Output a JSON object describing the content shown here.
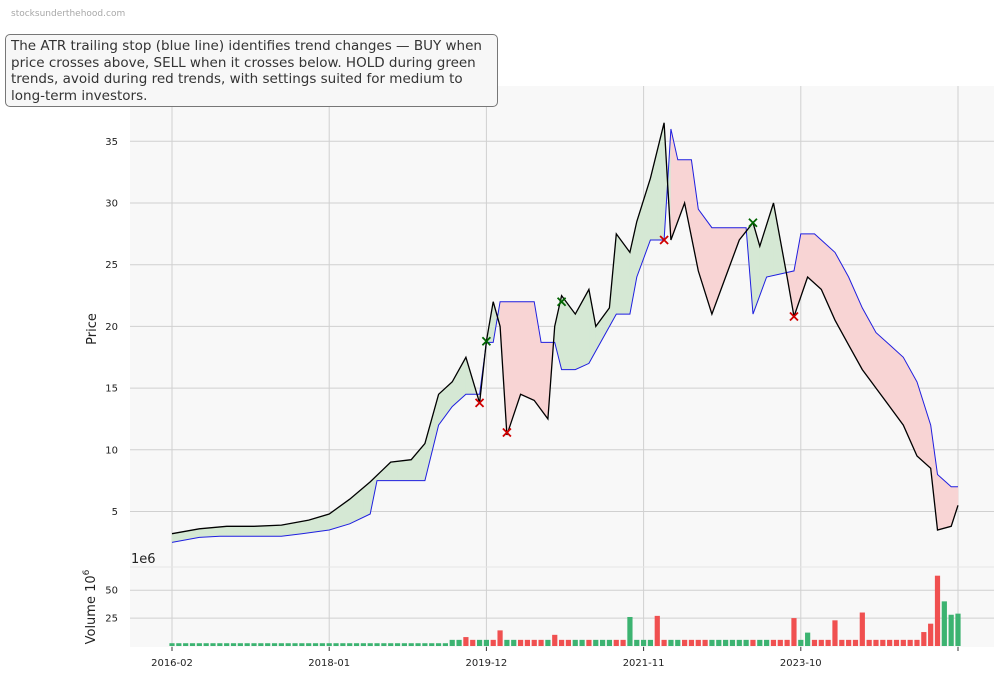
{
  "watermark": "stocksunderthehood.com",
  "annotation": "The ATR trailing stop (blue line) identifies trend changes — BUY when price crosses above, SELL when it crosses below. HOLD during green trends, avoid during red trends, with settings suited for medium to long-term investors.",
  "colors": {
    "price": "#000000",
    "stop": "#1f1fe0",
    "bull_fill": "#d5e8d4",
    "bear_fill": "#f8d4d4",
    "buy_marker": "#006400",
    "sell_marker": "#d00000",
    "vol_up": "#3cb371",
    "vol_down": "#f05050",
    "panel_bg": "#f8f8f8",
    "grid": "#d0d0d0"
  },
  "chart_data": [
    {
      "type": "line",
      "title": "",
      "ylabel": "Price",
      "xlim": [
        "2015-10",
        "2026-03"
      ],
      "ylim": [
        2,
        38
      ],
      "grid": true,
      "yticks": [
        5,
        10,
        15,
        20,
        25,
        30,
        35
      ],
      "xticks": [
        "2016-02",
        "2018-01",
        "2019-12",
        "2021-11",
        "2023-10"
      ],
      "series": [
        {
          "role": "price",
          "color": "black",
          "points": [
            [
              "2016-02",
              3.2
            ],
            [
              "2016-06",
              3.6
            ],
            [
              "2016-10",
              3.8
            ],
            [
              "2017-02",
              3.8
            ],
            [
              "2017-06",
              3.9
            ],
            [
              "2017-10",
              4.3
            ],
            [
              "2018-01",
              4.8
            ],
            [
              "2018-04",
              6.0
            ],
            [
              "2018-07",
              7.4
            ],
            [
              "2018-10",
              9.0
            ],
            [
              "2019-01",
              9.2
            ],
            [
              "2019-03",
              10.5
            ],
            [
              "2019-05",
              14.5
            ],
            [
              "2019-07",
              15.5
            ],
            [
              "2019-09",
              17.5
            ],
            [
              "2019-11",
              13.8
            ],
            [
              "2019-12",
              18.8
            ],
            [
              "2020-01",
              22.0
            ],
            [
              "2020-02",
              20.0
            ],
            [
              "2020-03",
              11.2
            ],
            [
              "2020-05",
              14.5
            ],
            [
              "2020-07",
              14.0
            ],
            [
              "2020-09",
              12.5
            ],
            [
              "2020-10",
              20.0
            ],
            [
              "2020-11",
              22.5
            ],
            [
              "2021-01",
              21.0
            ],
            [
              "2021-03",
              23.0
            ],
            [
              "2021-04",
              20.0
            ],
            [
              "2021-06",
              21.5
            ],
            [
              "2021-07",
              27.5
            ],
            [
              "2021-09",
              26.0
            ],
            [
              "2021-10",
              28.5
            ],
            [
              "2021-12",
              32.0
            ],
            [
              "2022-02",
              36.5
            ],
            [
              "2022-03",
              27.0
            ],
            [
              "2022-05",
              30.0
            ],
            [
              "2022-07",
              24.5
            ],
            [
              "2022-09",
              21.0
            ],
            [
              "2022-11",
              24.0
            ],
            [
              "2023-01",
              27.0
            ],
            [
              "2023-03",
              28.4
            ],
            [
              "2023-04",
              26.5
            ],
            [
              "2023-06",
              30.0
            ],
            [
              "2023-08",
              24.0
            ],
            [
              "2023-09",
              20.8
            ],
            [
              "2023-11",
              24.0
            ],
            [
              "2024-01",
              23.0
            ],
            [
              "2024-03",
              20.5
            ],
            [
              "2024-05",
              18.5
            ],
            [
              "2024-07",
              16.5
            ],
            [
              "2024-09",
              15.0
            ],
            [
              "2024-11",
              13.5
            ],
            [
              "2025-01",
              12.0
            ],
            [
              "2025-03",
              9.5
            ],
            [
              "2025-05",
              8.5
            ],
            [
              "2025-06",
              3.5
            ],
            [
              "2025-08",
              3.8
            ],
            [
              "2025-09",
              5.5
            ]
          ]
        },
        {
          "role": "atr_trailing_stop",
          "color": "blue",
          "points": [
            [
              "2016-02",
              2.5
            ],
            [
              "2016-06",
              2.9
            ],
            [
              "2016-09",
              3.0
            ],
            [
              "2017-06",
              3.0
            ],
            [
              "2017-09",
              3.2
            ],
            [
              "2018-01",
              3.5
            ],
            [
              "2018-04",
              4.0
            ],
            [
              "2018-07",
              4.8
            ],
            [
              "2018-08",
              7.5
            ],
            [
              "2019-03",
              7.5
            ],
            [
              "2019-05",
              12.0
            ],
            [
              "2019-07",
              13.5
            ],
            [
              "2019-09",
              14.5
            ],
            [
              "2019-11",
              14.5
            ],
            [
              "2019-12",
              18.7
            ],
            [
              "2020-01",
              18.7
            ],
            [
              "2020-02",
              22.0
            ],
            [
              "2020-07",
              22.0
            ],
            [
              "2020-08",
              18.7
            ],
            [
              "2020-10",
              18.7
            ],
            [
              "2020-11",
              16.5
            ],
            [
              "2021-01",
              16.5
            ],
            [
              "2021-03",
              17.0
            ],
            [
              "2021-05",
              19.0
            ],
            [
              "2021-07",
              21.0
            ],
            [
              "2021-09",
              21.0
            ],
            [
              "2021-10",
              24.0
            ],
            [
              "2021-12",
              27.0
            ],
            [
              "2022-02",
              27.0
            ],
            [
              "2022-03",
              36.0
            ],
            [
              "2022-04",
              33.5
            ],
            [
              "2022-06",
              33.5
            ],
            [
              "2022-07",
              29.5
            ],
            [
              "2022-09",
              28.0
            ],
            [
              "2023-02",
              28.0
            ],
            [
              "2023-03",
              21.0
            ],
            [
              "2023-05",
              24.0
            ],
            [
              "2023-09",
              24.5
            ],
            [
              "2023-10",
              27.5
            ],
            [
              "2023-12",
              27.5
            ],
            [
              "2024-01",
              27.0
            ],
            [
              "2024-03",
              26.0
            ],
            [
              "2024-05",
              24.0
            ],
            [
              "2024-07",
              21.5
            ],
            [
              "2024-09",
              19.5
            ],
            [
              "2024-11",
              18.5
            ],
            [
              "2025-01",
              17.5
            ],
            [
              "2025-03",
              15.5
            ],
            [
              "2025-05",
              12.0
            ],
            [
              "2025-06",
              8.0
            ],
            [
              "2025-08",
              7.0
            ],
            [
              "2025-09",
              7.0
            ]
          ]
        }
      ],
      "signals": [
        {
          "type": "sell",
          "date": "2019-11",
          "price": 13.8
        },
        {
          "type": "buy",
          "date": "2019-12",
          "price": 18.8
        },
        {
          "type": "sell",
          "date": "2020-03",
          "price": 11.4
        },
        {
          "type": "buy",
          "date": "2020-11",
          "price": 22.0
        },
        {
          "type": "sell",
          "date": "2022-02",
          "price": 27.0
        },
        {
          "type": "buy",
          "date": "2023-03",
          "price": 28.4
        },
        {
          "type": "sell",
          "date": "2023-09",
          "price": 20.8
        }
      ]
    },
    {
      "type": "bar",
      "ylabel": "Volume",
      "ylabel_unit": "10",
      "ylabel_unit_exp": "6",
      "offset_text": "1e6",
      "yticks": [
        25,
        50
      ],
      "ylim": [
        0,
        65
      ],
      "approx_volume_millions": {
        "baseline": 2.5,
        "spikes": [
          [
            "2019-09",
            8,
            "down"
          ],
          [
            "2020-02",
            14,
            "down"
          ],
          [
            "2020-10",
            10,
            "down"
          ],
          [
            "2021-09",
            26,
            "up"
          ],
          [
            "2022-01",
            27,
            "down"
          ],
          [
            "2023-09",
            25,
            "down"
          ],
          [
            "2023-11",
            12,
            "up"
          ],
          [
            "2024-03",
            23,
            "down"
          ],
          [
            "2024-07",
            30,
            "down"
          ],
          [
            "2025-05",
            20,
            "down"
          ],
          [
            "2025-06",
            63,
            "down"
          ],
          [
            "2025-07",
            40,
            "up"
          ],
          [
            "2025-08",
            28,
            "up"
          ],
          [
            "2025-09",
            29,
            "up"
          ]
        ]
      }
    }
  ]
}
